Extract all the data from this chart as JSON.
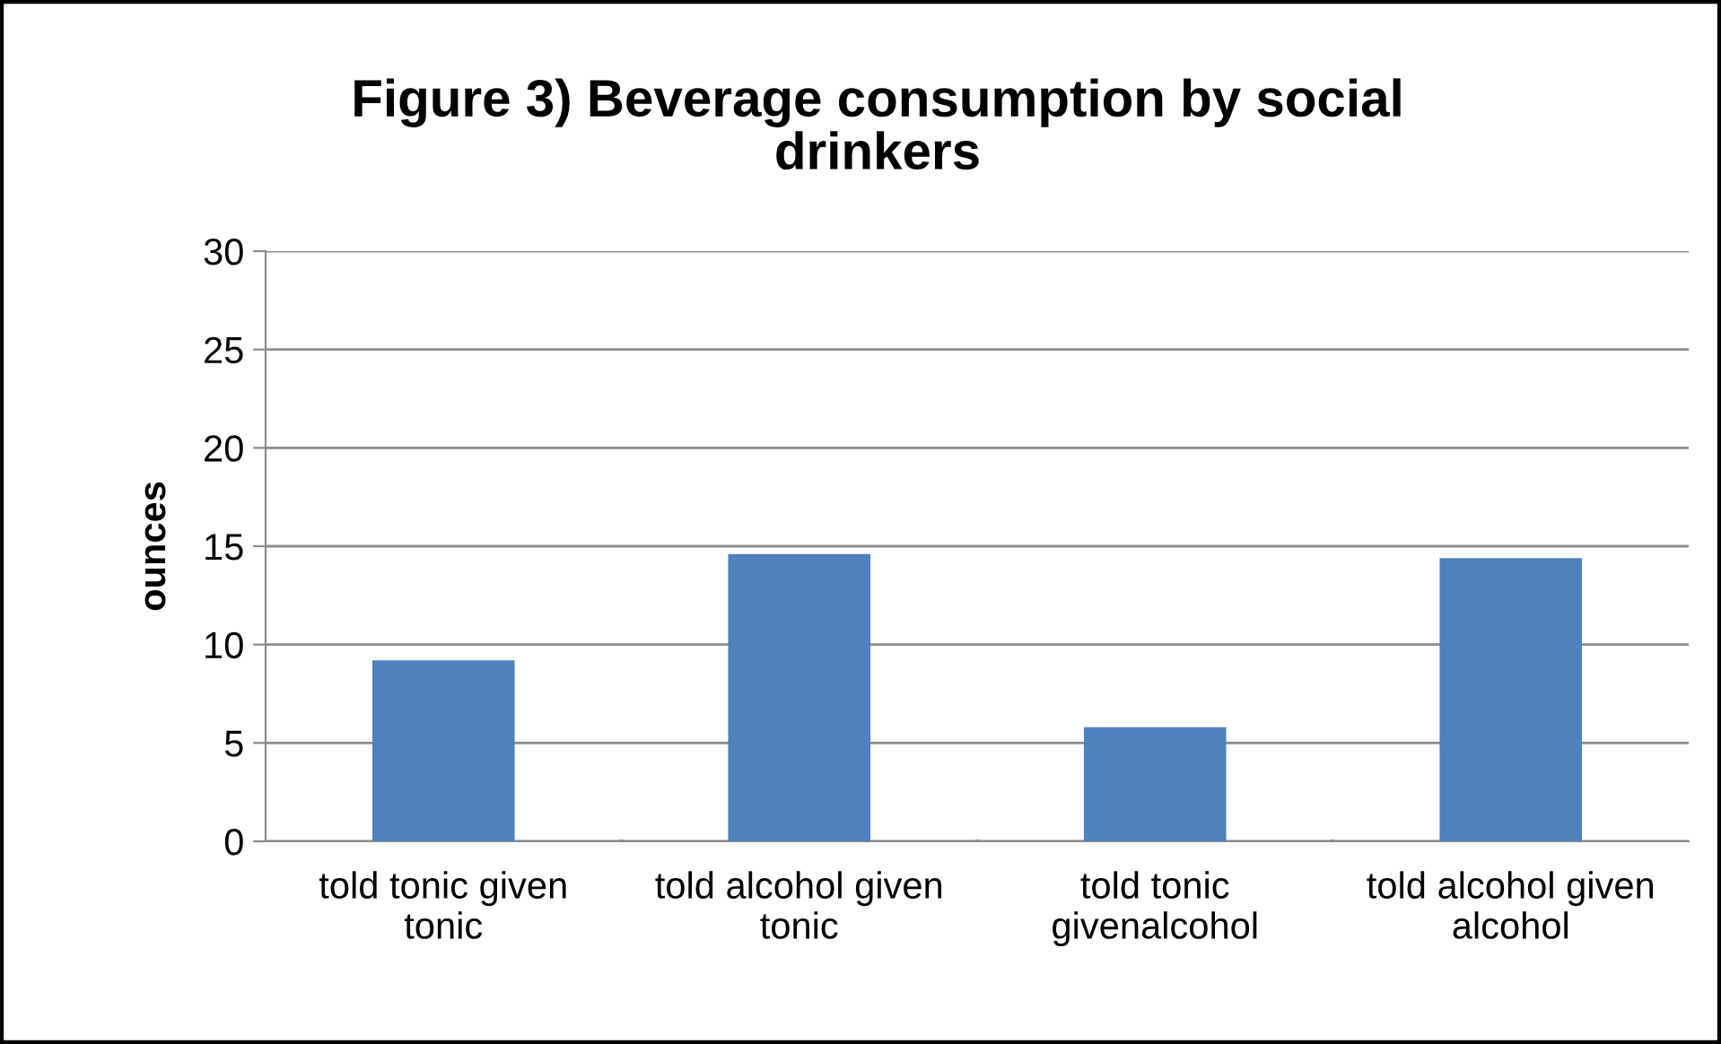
{
  "chart_data": {
    "type": "bar",
    "title": "Figure 3) Beverage consumption by social drinkers",
    "ylabel": "ounces",
    "categories": [
      "told tonic given tonic",
      "told alcohol given tonic",
      "told tonic givenalcohol",
      "told alcohol given alcohol"
    ],
    "values": [
      9.2,
      14.6,
      5.8,
      14.4
    ],
    "color": "#4f81bd",
    "ylim": [
      0,
      30
    ],
    "yticks": [
      0,
      5,
      10,
      15,
      20,
      25,
      30
    ],
    "grid": "y",
    "legend": false
  }
}
